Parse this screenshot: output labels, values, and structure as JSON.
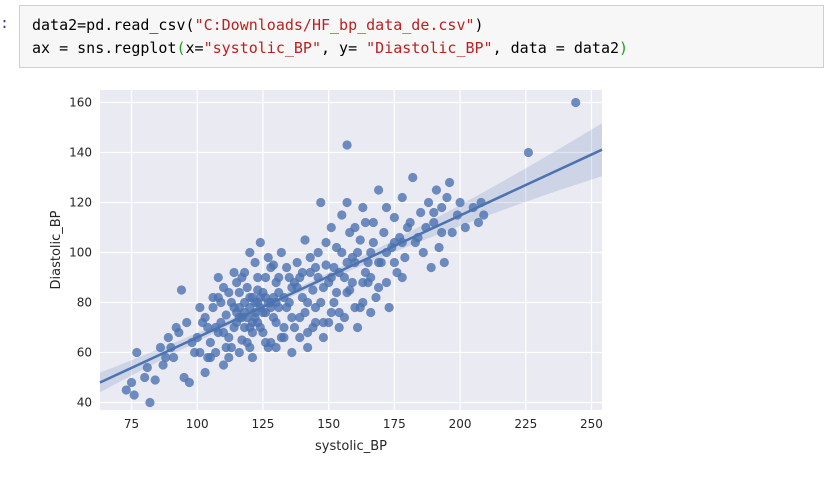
{
  "cell": {
    "prompt": ":",
    "line1": {
      "prefix": "data2=pd.read_csv(",
      "path": "\"C:Downloads/HF_bp_data_de.csv\"",
      "suffix": ")"
    },
    "line2": {
      "a": "ax = sns.regplot",
      "paren_open": "(",
      "b": "x=",
      "x_str": "\"systolic_BP\"",
      "c": ", y= ",
      "y_str": "\"Diastolic_BP\"",
      "d": ", data = data2",
      "paren_close": ")"
    }
  },
  "chart_data": {
    "type": "scatter",
    "xlabel": "systolic_BP",
    "ylabel": "Diastolic_BP",
    "xlim": [
      63,
      254
    ],
    "ylim": [
      37,
      165
    ],
    "xticks": [
      75,
      100,
      125,
      150,
      175,
      200,
      225,
      250
    ],
    "yticks": [
      40,
      60,
      80,
      100,
      120,
      140,
      160
    ],
    "grid": true,
    "point_color": "#4c72b0",
    "background_color": "#eaeaf2",
    "regression": {
      "slope": 0.4875,
      "intercept": 17.3,
      "x_range": [
        63,
        254
      ]
    },
    "points": [
      [
        244,
        160
      ],
      [
        226,
        140
      ],
      [
        157,
        143
      ],
      [
        73,
        45
      ],
      [
        75,
        48
      ],
      [
        76,
        43
      ],
      [
        77,
        60
      ],
      [
        80,
        50
      ],
      [
        81,
        54
      ],
      [
        82,
        40
      ],
      [
        84,
        49
      ],
      [
        88,
        58
      ],
      [
        90,
        62
      ],
      [
        92,
        70
      ],
      [
        94,
        85
      ],
      [
        95,
        50
      ],
      [
        97,
        48
      ],
      [
        99,
        60
      ],
      [
        100,
        66
      ],
      [
        102,
        72
      ],
      [
        103,
        52
      ],
      [
        104,
        58
      ],
      [
        105,
        64
      ],
      [
        106,
        78
      ],
      [
        108,
        82
      ],
      [
        108,
        90
      ],
      [
        110,
        55
      ],
      [
        110,
        68
      ],
      [
        111,
        75
      ],
      [
        112,
        84
      ],
      [
        113,
        62
      ],
      [
        114,
        70
      ],
      [
        115,
        88
      ],
      [
        116,
        74
      ],
      [
        117,
        65
      ],
      [
        118,
        80
      ],
      [
        118,
        92
      ],
      [
        120,
        70
      ],
      [
        120,
        100
      ],
      [
        121,
        58
      ],
      [
        122,
        76
      ],
      [
        123,
        85
      ],
      [
        124,
        104
      ],
      [
        125,
        68
      ],
      [
        126,
        90
      ],
      [
        127,
        62
      ],
      [
        128,
        80
      ],
      [
        129,
        95
      ],
      [
        130,
        72
      ],
      [
        131,
        84
      ],
      [
        132,
        100
      ],
      [
        133,
        66
      ],
      [
        134,
        78
      ],
      [
        135,
        90
      ],
      [
        136,
        60
      ],
      [
        137,
        88
      ],
      [
        138,
        96
      ],
      [
        139,
        74
      ],
      [
        140,
        82
      ],
      [
        141,
        105
      ],
      [
        142,
        68
      ],
      [
        143,
        92
      ],
      [
        144,
        85
      ],
      [
        145,
        78
      ],
      [
        146,
        100
      ],
      [
        147,
        120
      ],
      [
        148,
        72
      ],
      [
        149,
        95
      ],
      [
        150,
        88
      ],
      [
        151,
        110
      ],
      [
        152,
        80
      ],
      [
        153,
        102
      ],
      [
        154,
        76
      ],
      [
        155,
        115
      ],
      [
        156,
        90
      ],
      [
        157,
        120
      ],
      [
        158,
        85
      ],
      [
        159,
        98
      ],
      [
        160,
        110
      ],
      [
        161,
        70
      ],
      [
        162,
        105
      ],
      [
        163,
        118
      ],
      [
        164,
        92
      ],
      [
        165,
        88
      ],
      [
        166,
        100
      ],
      [
        167,
        112
      ],
      [
        168,
        82
      ],
      [
        169,
        125
      ],
      [
        170,
        96
      ],
      [
        171,
        108
      ],
      [
        172,
        118
      ],
      [
        173,
        78
      ],
      [
        174,
        102
      ],
      [
        175,
        114
      ],
      [
        176,
        92
      ],
      [
        177,
        106
      ],
      [
        178,
        122
      ],
      [
        179,
        98
      ],
      [
        180,
        110
      ],
      [
        182,
        130
      ],
      [
        183,
        104
      ],
      [
        185,
        116
      ],
      [
        186,
        100
      ],
      [
        188,
        120
      ],
      [
        189,
        94
      ],
      [
        190,
        112
      ],
      [
        191,
        125
      ],
      [
        192,
        102
      ],
      [
        193,
        118
      ],
      [
        194,
        96
      ],
      [
        195,
        122
      ],
      [
        196,
        128
      ],
      [
        197,
        108
      ],
      [
        199,
        115
      ],
      [
        200,
        120
      ],
      [
        202,
        110
      ],
      [
        205,
        118
      ],
      [
        207,
        112
      ],
      [
        208,
        120
      ],
      [
        209,
        115
      ],
      [
        86,
        62
      ],
      [
        87,
        55
      ],
      [
        89,
        66
      ],
      [
        91,
        58
      ],
      [
        93,
        68
      ],
      [
        96,
        72
      ],
      [
        98,
        64
      ],
      [
        101,
        78
      ],
      [
        107,
        60
      ],
      [
        109,
        72
      ],
      [
        112,
        66
      ],
      [
        114,
        78
      ],
      [
        116,
        60
      ],
      [
        119,
        86
      ],
      [
        121,
        68
      ],
      [
        123,
        72
      ],
      [
        126,
        76
      ],
      [
        128,
        64
      ],
      [
        130,
        88
      ],
      [
        133,
        82
      ],
      [
        136,
        74
      ],
      [
        139,
        66
      ],
      [
        142,
        80
      ],
      [
        145,
        72
      ],
      [
        148,
        86
      ],
      [
        151,
        76
      ],
      [
        154,
        92
      ],
      [
        157,
        84
      ],
      [
        160,
        96
      ],
      [
        163,
        80
      ],
      [
        166,
        90
      ],
      [
        169,
        86
      ],
      [
        172,
        100
      ],
      [
        175,
        96
      ],
      [
        178,
        104
      ],
      [
        181,
        112
      ],
      [
        184,
        106
      ],
      [
        187,
        110
      ],
      [
        190,
        116
      ],
      [
        193,
        108
      ],
      [
        104,
        70
      ],
      [
        106,
        82
      ],
      [
        108,
        68
      ],
      [
        110,
        86
      ],
      [
        111,
        62
      ],
      [
        113,
        80
      ],
      [
        115,
        72
      ],
      [
        117,
        90
      ],
      [
        119,
        64
      ],
      [
        121,
        82
      ],
      [
        122,
        96
      ],
      [
        124,
        70
      ],
      [
        125,
        84
      ],
      [
        127,
        98
      ],
      [
        129,
        74
      ],
      [
        131,
        90
      ],
      [
        132,
        66
      ],
      [
        134,
        94
      ],
      [
        135,
        80
      ],
      [
        137,
        70
      ],
      [
        138,
        86
      ],
      [
        140,
        92
      ],
      [
        141,
        76
      ],
      [
        143,
        98
      ],
      [
        144,
        70
      ],
      [
        146,
        90
      ],
      [
        147,
        80
      ],
      [
        149,
        104
      ],
      [
        150,
        72
      ],
      [
        152,
        94
      ],
      [
        153,
        84
      ],
      [
        155,
        100
      ],
      [
        156,
        74
      ],
      [
        158,
        108
      ],
      [
        159,
        88
      ],
      [
        161,
        100
      ],
      [
        162,
        78
      ],
      [
        164,
        112
      ],
      [
        165,
        96
      ],
      [
        167,
        104
      ],
      [
        101,
        60
      ],
      [
        103,
        74
      ],
      [
        105,
        58
      ],
      [
        107,
        70
      ],
      [
        109,
        80
      ],
      [
        112,
        58
      ],
      [
        114,
        92
      ],
      [
        116,
        84
      ],
      [
        118,
        70
      ],
      [
        120,
        62
      ],
      [
        123,
        90
      ],
      [
        126,
        64
      ],
      [
        128,
        94
      ],
      [
        130,
        62
      ],
      [
        133,
        70
      ],
      [
        136,
        86
      ],
      [
        139,
        90
      ],
      [
        142,
        62
      ],
      [
        145,
        94
      ],
      [
        148,
        66
      ],
      [
        151,
        90
      ],
      [
        154,
        70
      ],
      [
        157,
        96
      ],
      [
        160,
        78
      ],
      [
        163,
        88
      ],
      [
        166,
        76
      ],
      [
        169,
        96
      ],
      [
        172,
        88
      ],
      [
        175,
        104
      ],
      [
        178,
        90
      ],
      [
        120,
        78
      ],
      [
        118,
        76
      ],
      [
        117,
        74
      ],
      [
        116,
        78
      ],
      [
        115,
        76
      ],
      [
        119,
        74
      ],
      [
        121,
        72
      ],
      [
        122,
        74
      ],
      [
        124,
        78
      ],
      [
        125,
        76
      ],
      [
        127,
        80
      ],
      [
        128,
        78
      ],
      [
        130,
        80
      ],
      [
        131,
        78
      ],
      [
        129,
        82
      ],
      [
        126,
        82
      ],
      [
        124,
        82
      ],
      [
        123,
        80
      ],
      [
        122,
        80
      ],
      [
        120,
        82
      ]
    ]
  }
}
